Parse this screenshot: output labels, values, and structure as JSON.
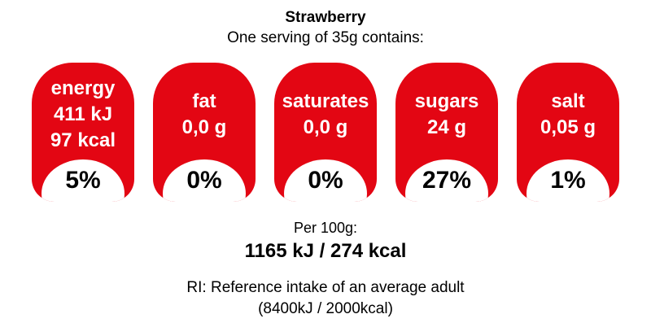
{
  "header": {
    "title": "Strawberry",
    "subtitle": "One serving of 35g contains:"
  },
  "nutrients": [
    {
      "label": "energy",
      "values": [
        "411 kJ",
        "97 kcal"
      ],
      "percent": "5%"
    },
    {
      "label": "fat",
      "values": [
        "0,0 g"
      ],
      "percent": "0%"
    },
    {
      "label": "saturates",
      "values": [
        "0,0 g"
      ],
      "percent": "0%"
    },
    {
      "label": "sugars",
      "values": [
        "24 g"
      ],
      "percent": "27%"
    },
    {
      "label": "salt",
      "values": [
        "0,05 g"
      ],
      "percent": "1%"
    }
  ],
  "footer": {
    "per100_label": "Per 100g:",
    "per100_value": "1165 kJ / 274 kcal",
    "ri_line1": "RI: Reference intake of an average adult",
    "ri_line2": "(8400kJ / 2000kcal)"
  },
  "colors": {
    "badge_red": "#e30613",
    "badge_text_white": "#ffffff",
    "text_black": "#000000"
  },
  "chart_data": {
    "type": "table",
    "title": "Strawberry",
    "subtitle": "One serving of 35g contains:",
    "categories": [
      "energy",
      "fat",
      "saturates",
      "sugars",
      "salt"
    ],
    "amounts_per_serving": [
      "411 kJ / 97 kcal",
      "0,0 g",
      "0,0 g",
      "24 g",
      "0,05 g"
    ],
    "percent_reference_intake": [
      5,
      0,
      0,
      27,
      1
    ],
    "serving_size": "35g",
    "per_100g": "1165 kJ / 274 kcal",
    "reference_intake_note": "RI: Reference intake of an average adult (8400kJ / 2000kcal)"
  }
}
